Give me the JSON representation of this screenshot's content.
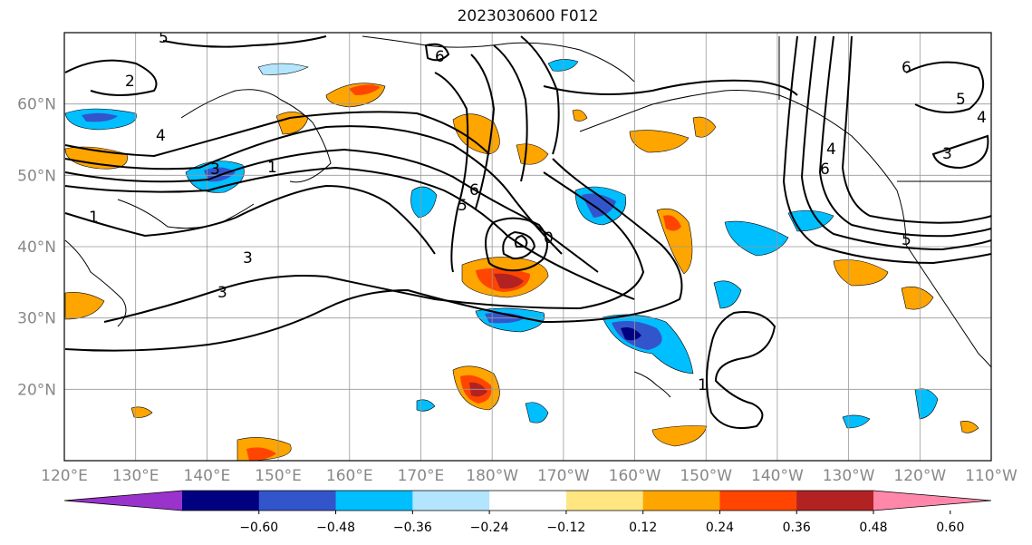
{
  "title": "2023030600 F012",
  "axes": {
    "lon_labels": [
      "120°E",
      "130°E",
      "140°E",
      "150°E",
      "160°E",
      "170°E",
      "180°W",
      "170°W",
      "160°W",
      "150°W",
      "140°W",
      "130°W",
      "120°W",
      "110°W"
    ],
    "lat_labels": [
      "60°N",
      "50°N",
      "40°N",
      "30°N",
      "20°N"
    ],
    "lon_range": [
      120,
      250
    ],
    "lat_range": [
      10,
      70
    ],
    "grid": true
  },
  "colorbar": {
    "ticks": [
      "−0.60",
      "−0.48",
      "−0.36",
      "−0.24",
      "−0.12",
      "0.12",
      "0.24",
      "0.36",
      "0.48",
      "0.60"
    ],
    "colors": [
      "#9933cc",
      "#000080",
      "#3355cc",
      "#00bfff",
      "#b3e5ff",
      "#ffffff",
      "#ffe680",
      "#ffa500",
      "#ff4500",
      "#b22222",
      "#ff88aa"
    ],
    "extend": "both"
  },
  "contour_labels": [
    "5",
    "1",
    "3",
    "6",
    "4",
    "5",
    "6",
    "1",
    "3",
    "0",
    "6",
    "4",
    "5",
    "3",
    "1",
    "6",
    "5",
    "2",
    "3",
    "4"
  ],
  "colors": {
    "line": "#000000",
    "grid": "#999999",
    "tick_label": "#888888"
  }
}
